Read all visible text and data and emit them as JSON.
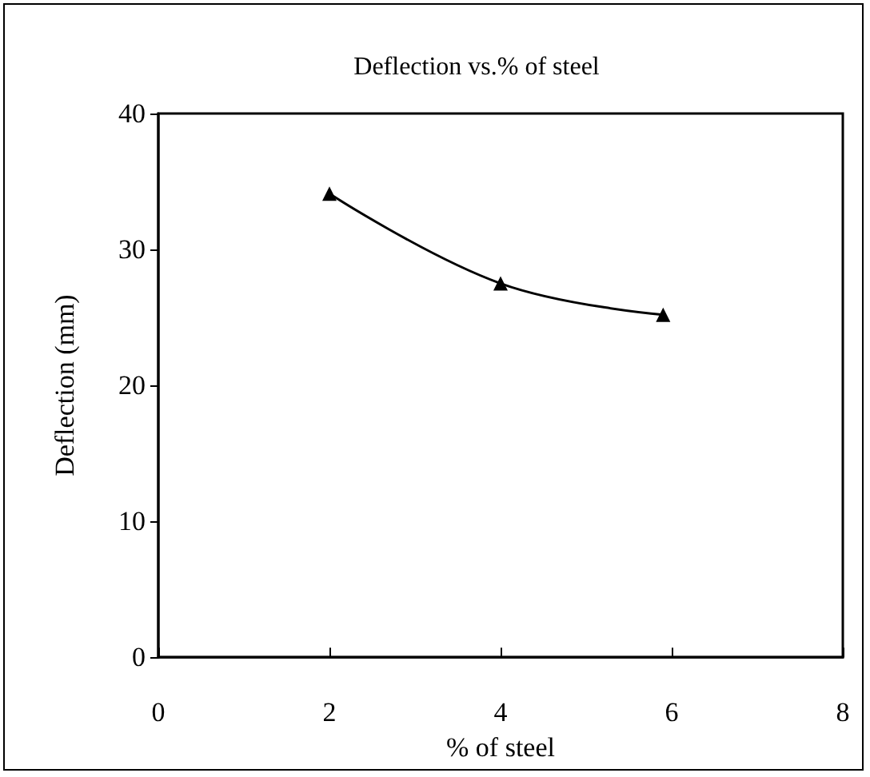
{
  "chart_data": {
    "type": "line",
    "title": "Deflection vs.% of steel",
    "xlabel": "% of steel",
    "ylabel": "Deflection (mm)",
    "x": [
      2,
      4,
      5.9
    ],
    "series": [
      {
        "color": "#000000",
        "values": [
          34.1,
          27.5,
          25.2
        ]
      }
    ],
    "xlim": [
      0,
      8
    ],
    "xticks": [
      0,
      2,
      4,
      6,
      8
    ],
    "ylim": [
      0,
      40
    ],
    "yticks": [
      0,
      10,
      20,
      30,
      40
    ],
    "marker": "triangle",
    "line_style": "solid"
  }
}
